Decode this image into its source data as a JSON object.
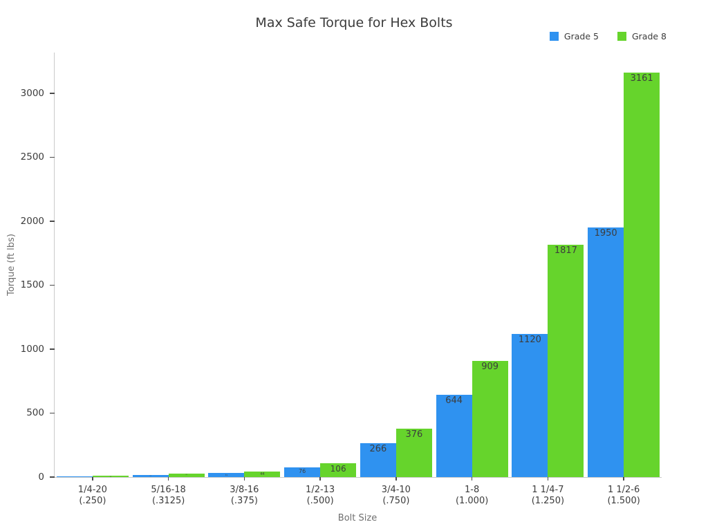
{
  "chart_data": {
    "type": "bar",
    "title": "Max Safe Torque for Hex Bolts",
    "xlabel": "Bolt Size",
    "ylabel": "Torque (ft lbs)",
    "categories": [
      {
        "label": "1/4-20",
        "sub": "(.250)"
      },
      {
        "label": "5/16-18",
        "sub": "(.3125)"
      },
      {
        "label": "3/8-16",
        "sub": "(.375)"
      },
      {
        "label": "1/2-13",
        "sub": "(.500)"
      },
      {
        "label": "3/4-10",
        "sub": "(.750)"
      },
      {
        "label": "1-8",
        "sub": "(1.000)"
      },
      {
        "label": "1 1/4-7",
        "sub": "(1.250)"
      },
      {
        "label": "1 1/2-6",
        "sub": "(1.500)"
      }
    ],
    "series": [
      {
        "name": "Grade 5",
        "color": "#2f92f0",
        "values": [
          8,
          17,
          31,
          76,
          266,
          644,
          1120,
          1950
        ]
      },
      {
        "name": "Grade 8",
        "color": "#66d42c",
        "values": [
          12,
          25,
          44,
          106,
          376,
          909,
          1817,
          3161
        ]
      }
    ],
    "yticks": [
      0,
      500,
      1000,
      1500,
      2000,
      2500,
      3000
    ],
    "ylim": [
      0,
      3300
    ],
    "grid": false,
    "bar_labels": true,
    "legend_position": "top-right"
  }
}
